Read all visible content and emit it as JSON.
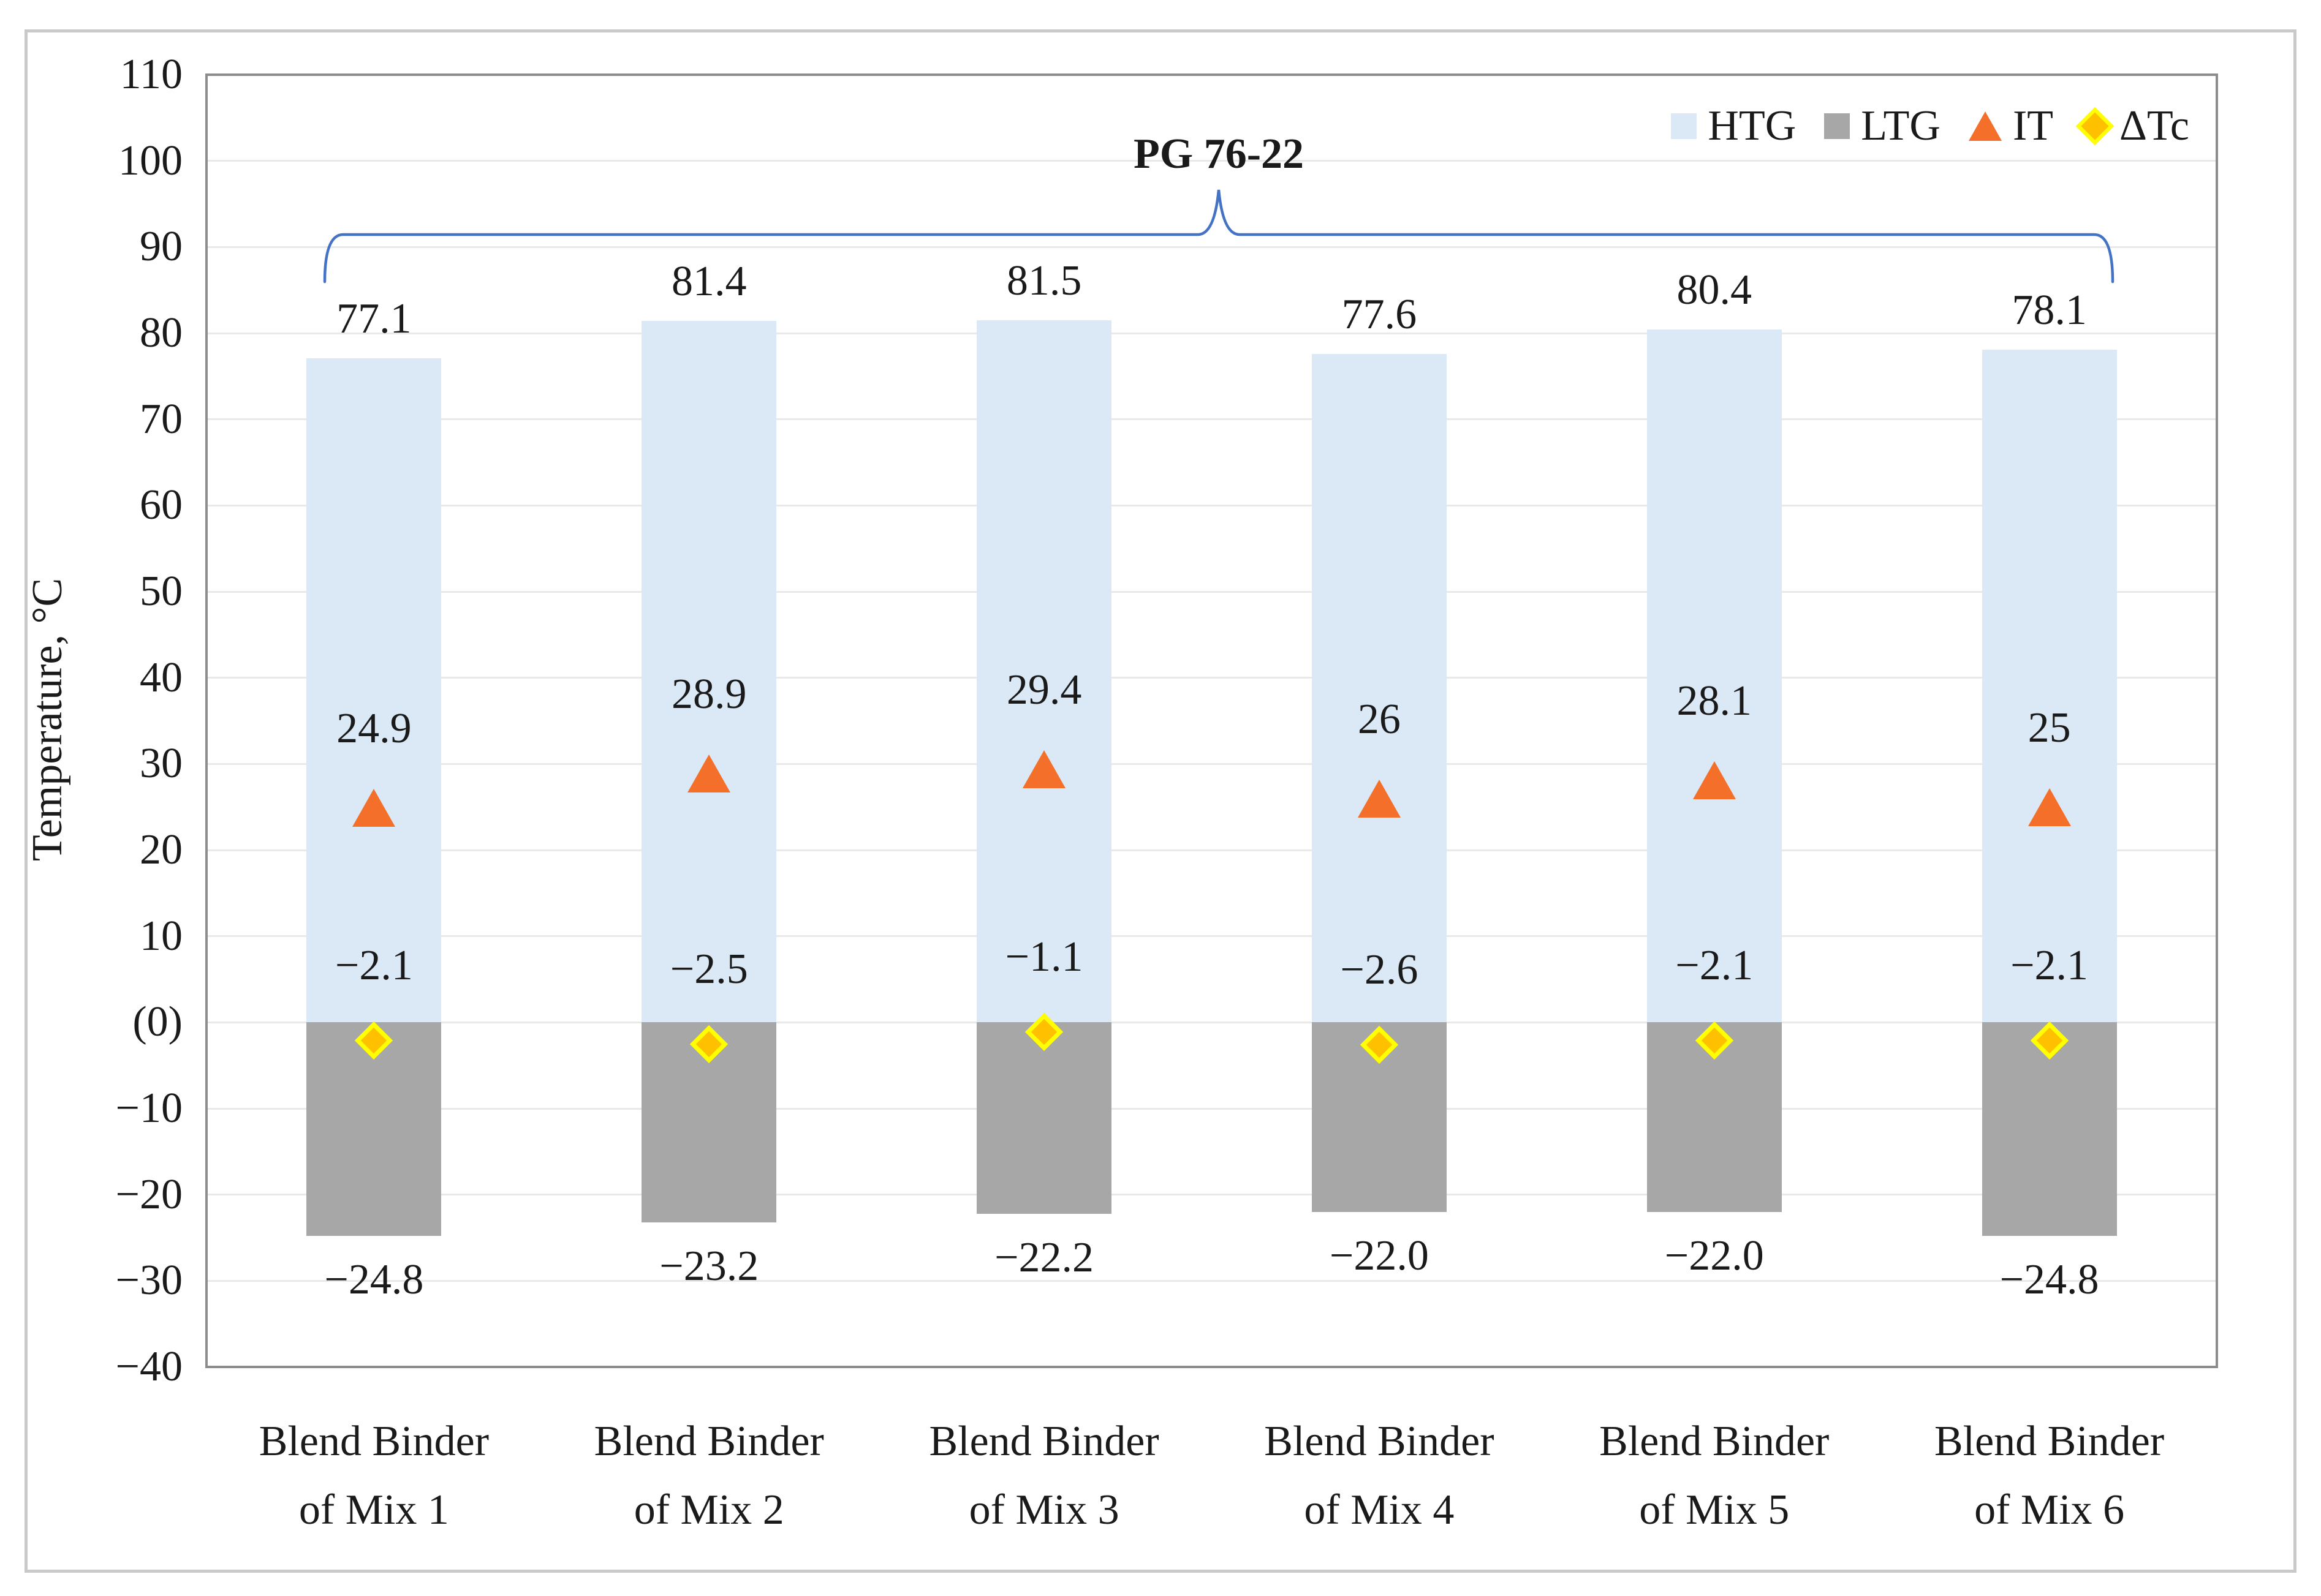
{
  "chart_data": {
    "type": "bar",
    "annotation": "PG 76-22",
    "ylabel": "Temperature, °C",
    "ylim": [
      -40,
      110
    ],
    "ytick_step": 10,
    "grid": true,
    "legend_position": "top-right-inside",
    "y_ticks": [
      "110",
      "100",
      "90",
      "80",
      "70",
      "60",
      "50",
      "40",
      "30",
      "20",
      "10",
      "(0)",
      "−10",
      "−20",
      "−30",
      "−40"
    ],
    "categories": [
      [
        "Blend Binder",
        "of Mix 1"
      ],
      [
        "Blend Binder",
        "of Mix 2"
      ],
      [
        "Blend Binder",
        "of Mix 3"
      ],
      [
        "Blend Binder",
        "of Mix 4"
      ],
      [
        "Blend Binder",
        "of Mix 5"
      ],
      [
        "Blend Binder",
        "of Mix 6"
      ]
    ],
    "series": [
      {
        "name": "HTG",
        "render": "column-positive",
        "color": "#dae9f5",
        "values": [
          77.1,
          81.4,
          81.5,
          77.6,
          80.4,
          78.1
        ],
        "labels": [
          "77.1",
          "81.4",
          "81.5",
          "77.6",
          "80.4",
          "78.1"
        ]
      },
      {
        "name": "LTG",
        "render": "column-negative",
        "color": "#a7a7a7",
        "values": [
          -24.8,
          -23.2,
          -22.2,
          -22.0,
          -22.0,
          -24.8
        ],
        "labels": [
          "−24.8",
          "−23.2",
          "−22.2",
          "−22.0",
          "−22.0",
          "−24.8"
        ]
      },
      {
        "name": "IT",
        "render": "marker-triangle",
        "color": "#f4702a",
        "values": [
          24.9,
          28.9,
          29.4,
          26,
          28.1,
          25
        ],
        "labels": [
          "24.9",
          "28.9",
          "29.4",
          "26",
          "28.1",
          "25"
        ]
      },
      {
        "name": "ΔTc",
        "render": "marker-diamond",
        "color": "#ffc000",
        "border_color": "#ffff00",
        "values": [
          -2.1,
          -2.5,
          -1.1,
          -2.6,
          -2.1,
          -2.1
        ],
        "labels": [
          "−2.1",
          "−2.5",
          "−1.1",
          "−2.6",
          "−2.1",
          "−2.1"
        ]
      }
    ],
    "colors": {
      "brace": "#4472c4",
      "gridline": "#e9e9e9",
      "plot_border": "#8c8c8c",
      "figure_frame": "#c9c9c9",
      "text": "#1a1a1a"
    }
  }
}
